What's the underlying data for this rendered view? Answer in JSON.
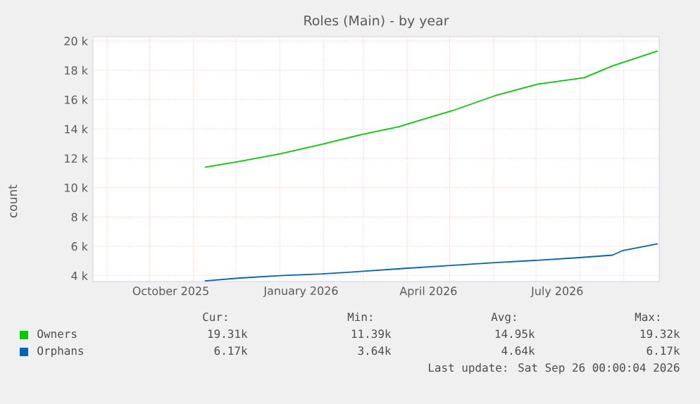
{
  "chart_data": {
    "type": "line",
    "title": "Roles (Main) - by year",
    "ylabel": "count",
    "xlim": [
      "2025-08-22",
      "2026-09-26"
    ],
    "xticks": [
      {
        "value": "2025-09-01",
        "label": null
      },
      {
        "value": "2025-10-01",
        "label": null
      },
      {
        "value": "2025-10-16",
        "label": "October 2025"
      },
      {
        "value": "2025-11-01",
        "label": null
      },
      {
        "value": "2025-12-01",
        "label": null
      },
      {
        "value": "2026-01-01",
        "label": null
      },
      {
        "value": "2026-01-16",
        "label": "January 2026"
      },
      {
        "value": "2026-02-01",
        "label": null
      },
      {
        "value": "2026-03-01",
        "label": null
      },
      {
        "value": "2026-04-01",
        "label": null
      },
      {
        "value": "2026-04-16",
        "label": "April 2026"
      },
      {
        "value": "2026-05-01",
        "label": null
      },
      {
        "value": "2026-06-01",
        "label": null
      },
      {
        "value": "2026-07-01",
        "label": null
      },
      {
        "value": "2026-07-16",
        "label": "July 2026"
      },
      {
        "value": "2026-08-01",
        "label": null
      },
      {
        "value": "2026-09-01",
        "label": null
      }
    ],
    "ylim": [
      3600,
      20300
    ],
    "yticks": [
      {
        "value": 4000,
        "label": "4 k"
      },
      {
        "value": 6000,
        "label": "6 k"
      },
      {
        "value": 8000,
        "label": "8 k"
      },
      {
        "value": 10000,
        "label": "10 k"
      },
      {
        "value": 12000,
        "label": "12 k"
      },
      {
        "value": 14000,
        "label": "14 k"
      },
      {
        "value": 16000,
        "label": "16 k"
      },
      {
        "value": 18000,
        "label": "18 k"
      },
      {
        "value": 20000,
        "label": "20 k"
      }
    ],
    "grid": true,
    "legend": "bottom",
    "series": [
      {
        "name": "Owners",
        "color": "#00cc00",
        "x": [
          "2025-11-09",
          "2025-12-04",
          "2026-01-01",
          "2026-01-31",
          "2026-03-01",
          "2026-03-26",
          "2026-04-10",
          "2026-05-03",
          "2026-06-02",
          "2026-07-02",
          "2026-08-04",
          "2026-08-24",
          "2026-09-25"
        ],
        "values": [
          11390,
          11800,
          12300,
          12960,
          13650,
          14150,
          14600,
          15250,
          16270,
          17050,
          17500,
          18300,
          19320
        ]
      },
      {
        "name": "Orphans",
        "color": "#0066b3",
        "x": [
          "2025-11-09",
          "2025-12-04",
          "2026-01-01",
          "2026-01-31",
          "2026-03-01",
          "2026-03-31",
          "2026-04-30",
          "2026-05-31",
          "2026-06-30",
          "2026-07-30",
          "2026-08-24",
          "2026-08-31",
          "2026-09-25"
        ],
        "values": [
          3640,
          3840,
          4000,
          4120,
          4300,
          4500,
          4690,
          4880,
          5040,
          5220,
          5400,
          5700,
          6170
        ]
      }
    ],
    "annotations": [
      "Cur:",
      "Min:",
      "Avg:",
      "Max:",
      "19.31k",
      "11.39k",
      "14.95k",
      "19.32k",
      "6.17k",
      "3.64k",
      "4.64k",
      "6.17k",
      "Last update: Sat Sep 26 00:00:04 2026"
    ]
  }
}
